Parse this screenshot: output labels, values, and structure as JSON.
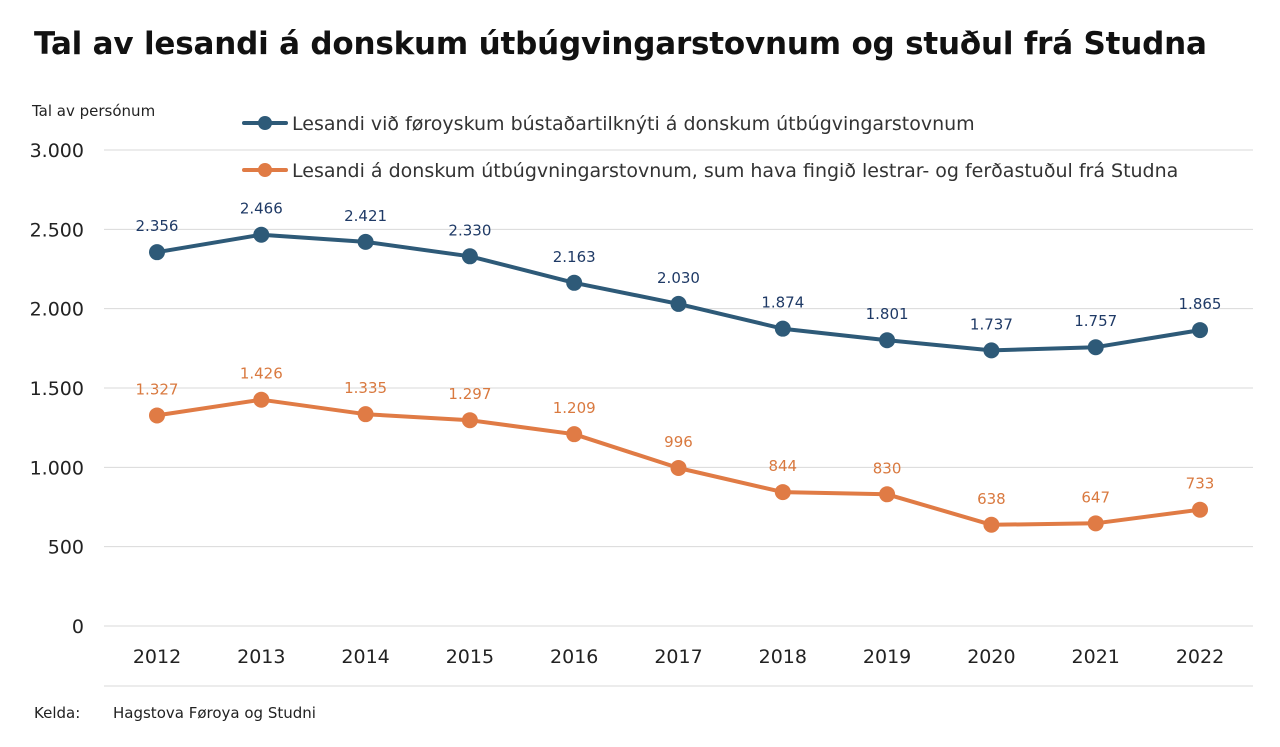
{
  "chart_data": {
    "type": "line",
    "title": "Tal av lesandi á donskum útbúgvingarstovnum og stuðul frá Studna",
    "ylabel": "Tal av persónum",
    "xlabel": "",
    "ylim": [
      0,
      3000
    ],
    "yticks": [
      0,
      500,
      1000,
      1500,
      2000,
      2500,
      3000
    ],
    "ytick_labels": [
      "0",
      "500",
      "1.000",
      "1.500",
      "2.000",
      "2.500",
      "3.000"
    ],
    "categories": [
      "2012",
      "2013",
      "2014",
      "2015",
      "2016",
      "2017",
      "2018",
      "2019",
      "2020",
      "2021",
      "2022"
    ],
    "grid": true,
    "legend_position": "top",
    "series": [
      {
        "name": "Lesandi við føroyskum bústaðartilknýti á donskum útbúgvingarstovnum",
        "color": "#2e5a78",
        "label_color": "#1f3a66",
        "values": [
          2356,
          2466,
          2421,
          2330,
          2163,
          2030,
          1874,
          1801,
          1737,
          1757,
          1865
        ],
        "labels": [
          "2.356",
          "2.466",
          "2.421",
          "2.330",
          "2.163",
          "2.030",
          "1.874",
          "1.801",
          "1.737",
          "1.757",
          "1.865"
        ]
      },
      {
        "name": "Lesandi á donskum útbúgvningarstovnum, sum hava fingið lestrar- og ferðastuðul frá Studna",
        "color": "#e07b45",
        "label_color": "#d9793f",
        "values": [
          1327,
          1426,
          1335,
          1297,
          1209,
          996,
          844,
          830,
          638,
          647,
          733
        ],
        "labels": [
          "1.327",
          "1.426",
          "1.335",
          "1.297",
          "1.209",
          "996",
          "844",
          "830",
          "638",
          "647",
          "733"
        ]
      }
    ]
  },
  "source": {
    "label": "Kelda:",
    "value": "Hagstova Føroya og Studni"
  }
}
